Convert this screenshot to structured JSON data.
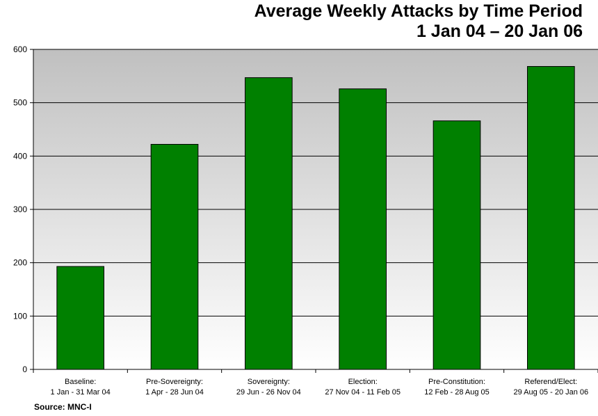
{
  "title": {
    "line1": "Average Weekly Attacks by Time Period",
    "line2": "1 Jan 04 – 20 Jan 06"
  },
  "source": "Source:  MNC-I",
  "colors": {
    "bar": "#008000",
    "bar_stroke": "#000000",
    "plot_bg_top": "#c0c0c0",
    "plot_bg_bottom": "#ffffff",
    "gridline": "#000000"
  },
  "chart_data": {
    "type": "bar",
    "title": "Average Weekly Attacks by Time Period 1 Jan 04 – 20 Jan 06",
    "xlabel": "",
    "ylabel": "",
    "ylim": [
      0,
      600
    ],
    "yticks": [
      0,
      100,
      200,
      300,
      400,
      500,
      600
    ],
    "grid": true,
    "categories": [
      [
        "Baseline:",
        "1 Jan - 31 Mar 04"
      ],
      [
        "Pre-Sovereignty:",
        "1 Apr - 28 Jun 04"
      ],
      [
        "Sovereignty:",
        "29 Jun - 26 Nov 04"
      ],
      [
        "Election:",
        "27 Nov 04 - 11 Feb 05"
      ],
      [
        "Pre-Constitution:",
        "12 Feb - 28 Aug 05"
      ],
      [
        "Referend/Elect:",
        "29 Aug 05 - 20 Jan 06"
      ]
    ],
    "values": [
      193,
      422,
      547,
      526,
      466,
      568
    ]
  }
}
